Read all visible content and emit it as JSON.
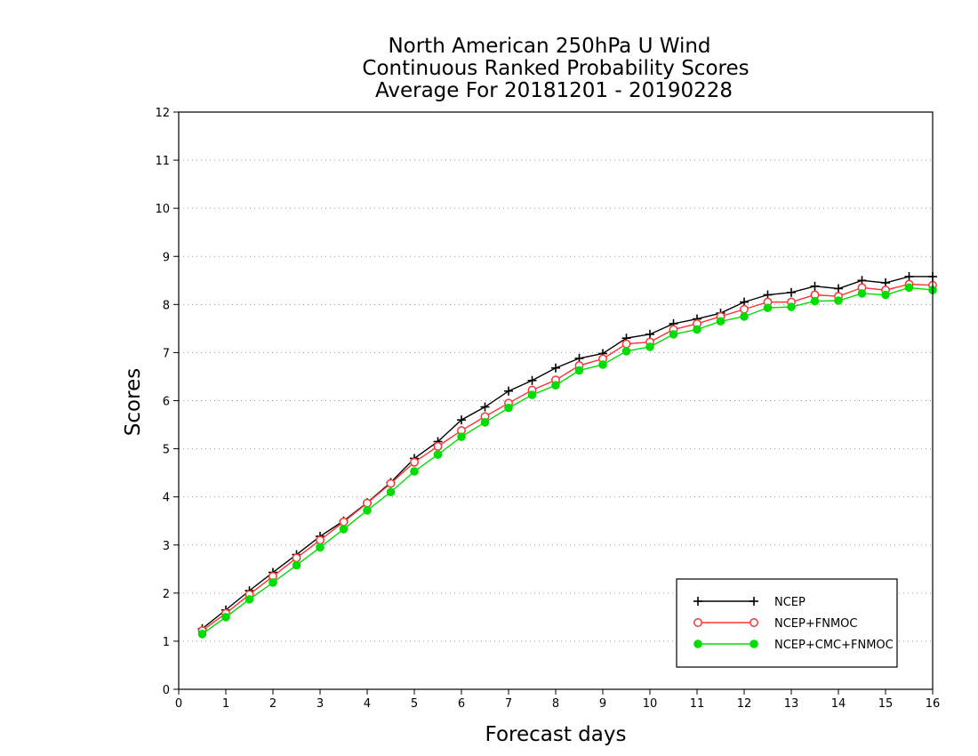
{
  "chart_data": {
    "type": "line",
    "title": [
      "North American 250hPa U Wind",
      "Continuous Ranked Probability Scores",
      "Average For 20181201 - 20190228"
    ],
    "xlabel": "Forecast days",
    "ylabel": "Scores",
    "xlim": [
      0,
      16
    ],
    "ylim": [
      0,
      12
    ],
    "xticks": [
      0,
      1,
      2,
      3,
      4,
      5,
      6,
      7,
      8,
      9,
      10,
      11,
      12,
      13,
      14,
      15,
      16
    ],
    "yticks": [
      0,
      1,
      2,
      3,
      4,
      5,
      6,
      7,
      8,
      9,
      10,
      11,
      12
    ],
    "grid": "horizontal dotted",
    "legend_position": "bottom-right",
    "x": [
      0.5,
      1,
      1.5,
      2,
      2.5,
      3,
      3.5,
      4,
      4.5,
      5,
      5.5,
      6,
      6.5,
      7,
      7.5,
      8,
      8.5,
      9,
      9.5,
      10,
      10.5,
      11,
      11.5,
      12,
      12.5,
      13,
      13.5,
      14,
      14.5,
      15,
      15.5,
      16
    ],
    "series": [
      {
        "name": "NCEP",
        "color": "#000000",
        "marker": "plus",
        "values": [
          1.26,
          1.65,
          2.05,
          2.43,
          2.8,
          3.18,
          3.5,
          3.88,
          4.3,
          4.8,
          5.15,
          5.6,
          5.87,
          6.2,
          6.42,
          6.68,
          6.88,
          6.98,
          7.3,
          7.38,
          7.6,
          7.7,
          7.82,
          8.05,
          8.2,
          8.25,
          8.38,
          8.33,
          8.5,
          8.45,
          8.58,
          8.58
        ]
      },
      {
        "name": "NCEP+FNMOC",
        "color": "#ff3333",
        "marker": "open-circle",
        "values": [
          1.22,
          1.58,
          1.97,
          2.35,
          2.73,
          3.1,
          3.48,
          3.87,
          4.28,
          4.72,
          5.05,
          5.38,
          5.67,
          5.95,
          6.22,
          6.43,
          6.73,
          6.87,
          7.18,
          7.22,
          7.48,
          7.6,
          7.75,
          7.9,
          8.05,
          8.05,
          8.2,
          8.17,
          8.35,
          8.3,
          8.42,
          8.4
        ]
      },
      {
        "name": "NCEP+CMC+FNMOC",
        "color": "#00dd00",
        "marker": "filled-circle",
        "values": [
          1.15,
          1.5,
          1.87,
          2.22,
          2.58,
          2.95,
          3.33,
          3.72,
          4.1,
          4.53,
          4.88,
          5.25,
          5.55,
          5.85,
          6.12,
          6.32,
          6.63,
          6.75,
          7.03,
          7.12,
          7.38,
          7.48,
          7.65,
          7.75,
          7.93,
          7.95,
          8.07,
          8.08,
          8.23,
          8.2,
          8.35,
          8.3
        ]
      }
    ]
  }
}
